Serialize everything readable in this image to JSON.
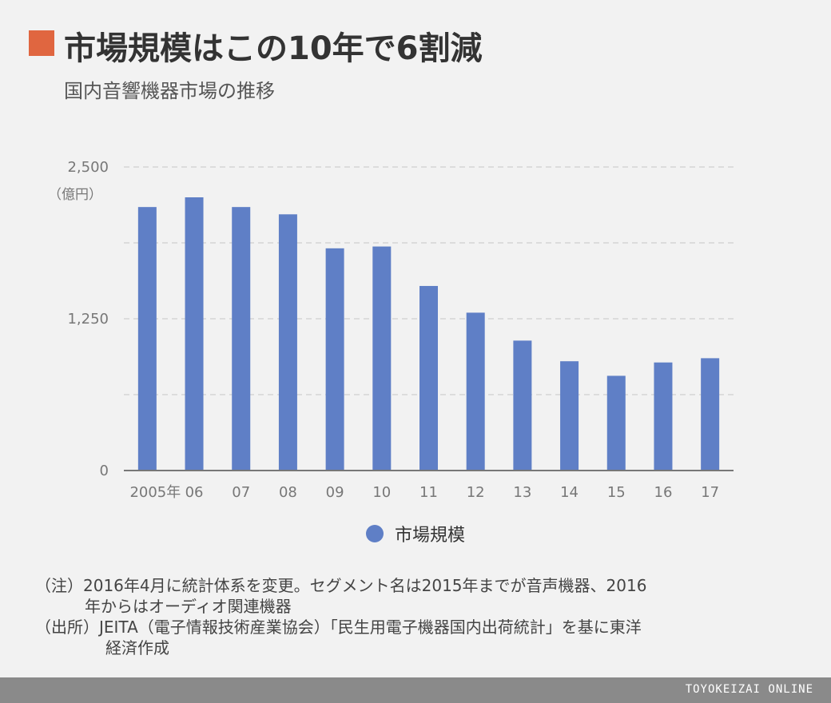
{
  "title": "市場規模はこの10年で6割減",
  "subtitle": "国内音響機器市場の推移",
  "chart_data": {
    "type": "bar",
    "title": "市場規模はこの10年で6割減",
    "subtitle": "国内音響機器市場の推移",
    "unit_label": "（億円）",
    "categories": [
      "2005年",
      "06",
      "07",
      "08",
      "09",
      "10",
      "11",
      "12",
      "13",
      "14",
      "15",
      "16",
      "17"
    ],
    "series": [
      {
        "name": "市場規模",
        "color": "#5f7fc6",
        "values": [
          2170,
          2250,
          2170,
          2110,
          1830,
          1845,
          1520,
          1300,
          1070,
          900,
          780,
          890,
          925
        ]
      }
    ],
    "ylim": [
      0,
      2500
    ],
    "y_ticks": [
      0,
      1250,
      2500
    ],
    "y_tick_labels": [
      "0",
      "1,250",
      "2,500"
    ],
    "grid": true,
    "legend": "bottom-center"
  },
  "legend": {
    "label": "市場規模"
  },
  "notes": {
    "note1_line1": "（注）2016年4月に統計体系を変更。セグメント名は2015年までが音声機器、2016",
    "note1_line2": "年からはオーディオ関連機器",
    "note2_line1": "（出所）JEITA（電子情報技術産業協会）「民生用電子機器国内出荷統計」を基に東洋",
    "note2_line2": "経済作成"
  },
  "footer": {
    "brand": "TOYOKEIZAI ONLINE"
  },
  "colors": {
    "accent": "#e06640",
    "bar": "#5f7fc6",
    "footer_bg": "#8a8a8a"
  }
}
